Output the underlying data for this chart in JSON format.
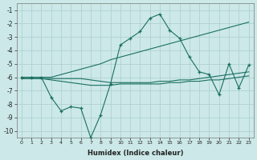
{
  "xlabel": "Humidex (Indice chaleur)",
  "background_color": "#cce8e8",
  "grid_color": "#aacece",
  "line_color": "#1a7060",
  "x_values": [
    0,
    1,
    2,
    3,
    4,
    5,
    6,
    7,
    8,
    9,
    10,
    11,
    12,
    13,
    14,
    15,
    16,
    17,
    18,
    19,
    20,
    21,
    22,
    23
  ],
  "line_main": [
    -6.0,
    -6.0,
    -6.0,
    -7.5,
    -8.5,
    -8.2,
    -8.3,
    -10.5,
    -8.8,
    -6.5,
    -3.6,
    -3.1,
    -2.6,
    -1.6,
    -1.3,
    -2.5,
    -3.1,
    -4.5,
    -5.6,
    -5.8,
    -7.3,
    -5.0,
    -6.8,
    -5.1
  ],
  "line_rising": [
    -6.0,
    -6.0,
    -6.0,
    -6.0,
    -5.8,
    -5.6,
    -5.4,
    -5.2,
    -5.0,
    -4.7,
    -4.5,
    -4.3,
    -4.1,
    -3.9,
    -3.7,
    -3.5,
    -3.3,
    -3.1,
    -2.9,
    -2.7,
    -2.5,
    -2.3,
    -2.1,
    -1.9
  ],
  "line_flat1": [
    -6.1,
    -6.1,
    -6.1,
    -6.1,
    -6.1,
    -6.1,
    -6.1,
    -6.2,
    -6.3,
    -6.4,
    -6.4,
    -6.4,
    -6.4,
    -6.4,
    -6.3,
    -6.3,
    -6.2,
    -6.2,
    -6.1,
    -6.0,
    -5.9,
    -5.8,
    -5.7,
    -5.6
  ],
  "line_flat2": [
    -6.1,
    -6.1,
    -6.1,
    -6.2,
    -6.3,
    -6.4,
    -6.5,
    -6.6,
    -6.6,
    -6.6,
    -6.5,
    -6.5,
    -6.5,
    -6.5,
    -6.5,
    -6.4,
    -6.4,
    -6.3,
    -6.3,
    -6.2,
    -6.2,
    -6.1,
    -6.0,
    -5.9
  ],
  "ylim": [
    -10.5,
    -0.5
  ],
  "xlim": [
    -0.5,
    23.5
  ]
}
